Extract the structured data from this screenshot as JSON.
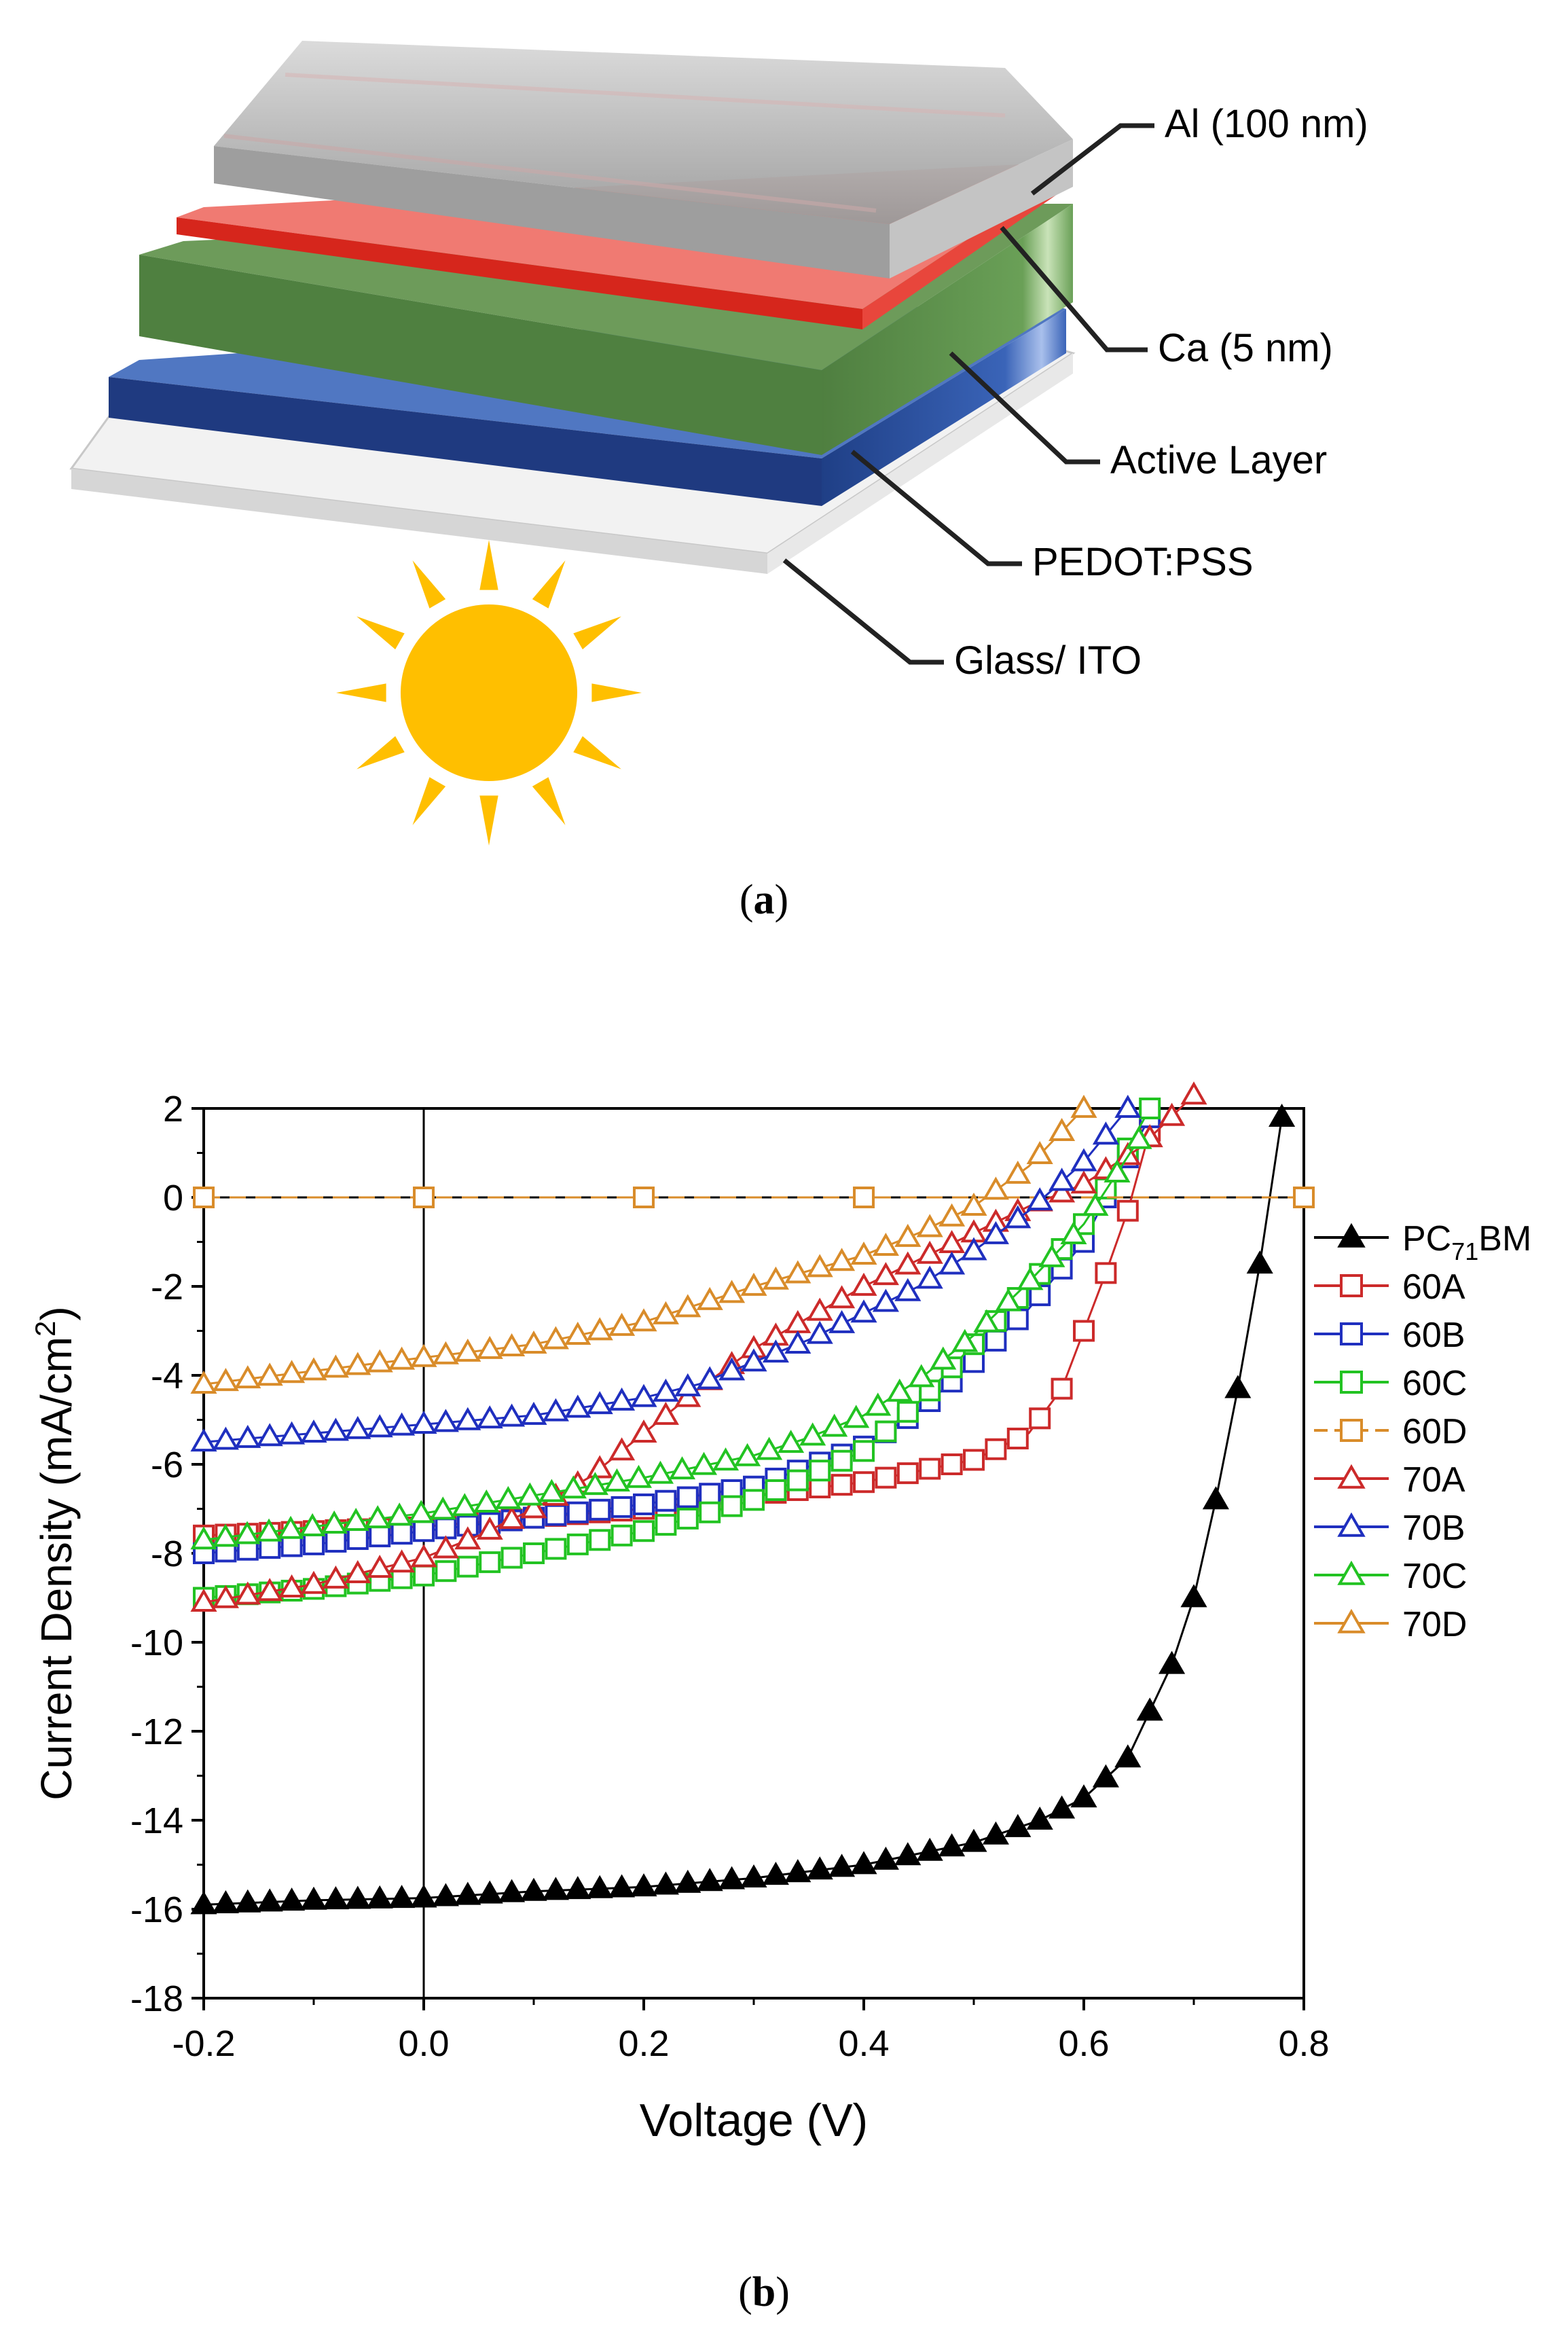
{
  "panel_a": {
    "caption": "a",
    "layers": [
      {
        "name": "Al (100 nm)",
        "color": "#b8b8b8"
      },
      {
        "name": "Ca (5 nm)",
        "color": "#e8463c"
      },
      {
        "name": "Active Layer",
        "color": "#5c8f4c"
      },
      {
        "name": "PEDOT:PSS",
        "color": "#2b4f98"
      },
      {
        "name": "Glass/ ITO",
        "color": "#e2e2e2"
      }
    ],
    "sun_color": "#ffbf00"
  },
  "panel_b": {
    "caption": "b"
  },
  "chart_data": {
    "type": "line",
    "xlabel": "Voltage (V)",
    "ylabel_main": "Current Density (mA/cm",
    "ylabel_sup": "2",
    "ylabel_close": ")",
    "xlim": [
      -0.2,
      0.8
    ],
    "ylim": [
      -18,
      2
    ],
    "xticks": [
      -0.2,
      0.0,
      0.2,
      0.4,
      0.6,
      0.8
    ],
    "xtick_labels": [
      "-0.2",
      "0.0",
      "0.2",
      "0.4",
      "0.6",
      "0.8"
    ],
    "yticks": [
      2,
      0,
      -2,
      -4,
      -6,
      -8,
      -10,
      -12,
      -14,
      -16,
      -18
    ],
    "ytick_labels": [
      "2",
      "0",
      "-2",
      "-4",
      "-6",
      "-8",
      "-10",
      "-12",
      "-14",
      "-16",
      "-18"
    ],
    "grid": false,
    "legend_position": "right",
    "series": [
      {
        "label_main": "PC",
        "label_sub": "71",
        "label_tail": "BM",
        "color": "#000000",
        "marker": "triangle-filled",
        "dashed": false,
        "x": [
          -0.2,
          -0.1,
          0.0,
          0.1,
          0.2,
          0.3,
          0.4,
          0.5,
          0.56,
          0.6,
          0.64,
          0.68,
          0.7,
          0.72,
          0.74,
          0.76,
          0.78
        ],
        "y": [
          -15.9,
          -15.8,
          -15.75,
          -15.6,
          -15.5,
          -15.3,
          -15.0,
          -14.5,
          -14.0,
          -13.5,
          -12.6,
          -10.5,
          -9.0,
          -6.8,
          -4.3,
          -1.5,
          1.8
        ]
      },
      {
        "label_main": "60A",
        "color": "#cc2a2a",
        "marker": "square",
        "dashed": false,
        "x": [
          -0.2,
          -0.1,
          0.0,
          0.1,
          0.2,
          0.3,
          0.4,
          0.5,
          0.55,
          0.58,
          0.6,
          0.62,
          0.64,
          0.66
        ],
        "y": [
          -7.6,
          -7.5,
          -7.4,
          -7.2,
          -7.0,
          -6.7,
          -6.4,
          -5.9,
          -5.3,
          -4.3,
          -3.0,
          -1.7,
          -0.3,
          1.5
        ]
      },
      {
        "label_main": "60B",
        "color": "#1f2fbf",
        "marker": "square",
        "dashed": false,
        "x": [
          -0.2,
          -0.1,
          0.0,
          0.1,
          0.2,
          0.3,
          0.4,
          0.45,
          0.5,
          0.55,
          0.6,
          0.62,
          0.64,
          0.66
        ],
        "y": [
          -8.0,
          -7.8,
          -7.5,
          -7.2,
          -6.9,
          -6.5,
          -5.6,
          -4.8,
          -3.7,
          -2.5,
          -1.0,
          0.0,
          0.9,
          1.8
        ]
      },
      {
        "label_main": "60C",
        "color": "#22c322",
        "marker": "square",
        "dashed": false,
        "x": [
          -0.2,
          -0.1,
          0.0,
          0.1,
          0.2,
          0.3,
          0.4,
          0.45,
          0.5,
          0.55,
          0.6,
          0.62,
          0.64,
          0.66
        ],
        "y": [
          -9.0,
          -8.8,
          -8.5,
          -8.0,
          -7.5,
          -6.8,
          -5.7,
          -4.6,
          -3.3,
          -2.0,
          -0.6,
          0.2,
          1.1,
          2.0
        ]
      },
      {
        "label_main": "60D",
        "color": "#d98c2a",
        "marker": "square",
        "dashed": true,
        "x": [
          -0.2,
          0.0,
          0.2,
          0.4,
          0.8
        ],
        "y": [
          0,
          0,
          0,
          0,
          0
        ]
      },
      {
        "label_main": "70A",
        "color": "#cc2a2a",
        "marker": "triangle",
        "dashed": false,
        "x": [
          -0.2,
          -0.1,
          0.0,
          0.05,
          0.1,
          0.15,
          0.2,
          0.25,
          0.3,
          0.35,
          0.4,
          0.45,
          0.5,
          0.55,
          0.6,
          0.65,
          0.7
        ],
        "y": [
          -9.1,
          -8.7,
          -8.1,
          -7.6,
          -7.0,
          -6.3,
          -5.3,
          -4.3,
          -3.4,
          -2.7,
          -2.0,
          -1.4,
          -0.8,
          -0.2,
          0.3,
          1.1,
          2.3
        ]
      },
      {
        "label_main": "70B",
        "color": "#1f2fbf",
        "marker": "triangle",
        "dashed": false,
        "x": [
          -0.2,
          -0.1,
          0.0,
          0.1,
          0.2,
          0.25,
          0.3,
          0.35,
          0.4,
          0.45,
          0.5,
          0.55,
          0.6,
          0.64
        ],
        "y": [
          -5.5,
          -5.3,
          -5.1,
          -4.9,
          -4.5,
          -4.2,
          -3.7,
          -3.2,
          -2.6,
          -2.0,
          -1.2,
          -0.3,
          0.8,
          2.0
        ]
      },
      {
        "label_main": "70C",
        "color": "#22c322",
        "marker": "triangle",
        "dashed": false,
        "x": [
          -0.2,
          -0.1,
          0.0,
          0.1,
          0.2,
          0.3,
          0.35,
          0.4,
          0.45,
          0.5,
          0.55,
          0.6,
          0.65
        ],
        "y": [
          -7.7,
          -7.4,
          -7.1,
          -6.7,
          -6.3,
          -5.8,
          -5.4,
          -4.9,
          -4.1,
          -3.1,
          -1.9,
          -0.6,
          1.3
        ]
      },
      {
        "label_main": "70D",
        "color": "#d98c2a",
        "marker": "triangle",
        "dashed": false,
        "x": [
          -0.2,
          -0.1,
          0.0,
          0.1,
          0.2,
          0.3,
          0.4,
          0.45,
          0.5,
          0.55,
          0.6
        ],
        "y": [
          -4.2,
          -3.9,
          -3.6,
          -3.3,
          -2.8,
          -2.0,
          -1.3,
          -0.8,
          -0.2,
          0.7,
          2.0
        ]
      }
    ]
  }
}
